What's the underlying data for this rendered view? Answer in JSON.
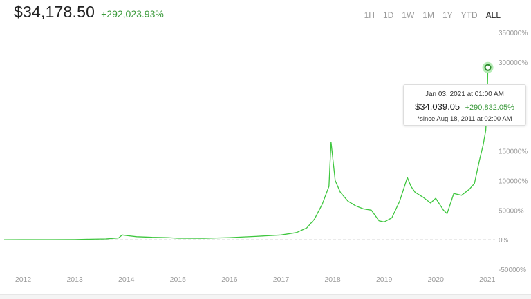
{
  "header": {
    "price": "$34,178.50",
    "change": "+292,023.93%"
  },
  "ranges": [
    "1H",
    "1D",
    "1W",
    "1M",
    "1Y",
    "YTD",
    "ALL"
  ],
  "active_range": "ALL",
  "tooltip": {
    "date": "Jan 03, 2021 at 01:00 AM",
    "price": "$34,039.05",
    "change": "+290,832.05%",
    "since": "*since Aug 18, 2011 at 02:00 AM"
  },
  "colors": {
    "line": "#3ec63e",
    "positive": "#3b9a3b",
    "zero_line": "#c8c8c8",
    "axis_text": "#9a9a9a"
  },
  "chart_data": {
    "type": "line",
    "y_unit": "%",
    "ylim": [
      -50000,
      350000
    ],
    "yticks": [
      -50000,
      0,
      50000,
      100000,
      150000,
      300000,
      350000
    ],
    "ytick_labels": [
      "-50000%",
      "0%",
      "50000%",
      "100000%",
      "150000%",
      "300000%",
      "350000%"
    ],
    "xticks": [
      2012,
      2013,
      2014,
      2015,
      2016,
      2017,
      2018,
      2019,
      2020,
      2021
    ],
    "xtick_labels": [
      "2012",
      "2013",
      "2014",
      "2015",
      "2016",
      "2017",
      "2018",
      "2019",
      "2020",
      "2021"
    ],
    "xlim": [
      2011.55,
      2021.15
    ],
    "grid": false,
    "series": [
      {
        "x": [
          2011.63,
          2012.0,
          2012.5,
          2013.0,
          2013.3,
          2013.6,
          2013.85,
          2013.92,
          2014.0,
          2014.2,
          2014.5,
          2014.8,
          2015.0,
          2015.5,
          2016.0,
          2016.5,
          2017.0,
          2017.3,
          2017.5,
          2017.65,
          2017.8,
          2017.93,
          2017.97,
          2018.05,
          2018.15,
          2018.3,
          2018.45,
          2018.6,
          2018.75,
          2018.9,
          2019.0,
          2019.15,
          2019.3,
          2019.45,
          2019.52,
          2019.6,
          2019.75,
          2019.9,
          2020.0,
          2020.15,
          2020.22,
          2020.35,
          2020.5,
          2020.65,
          2020.75,
          2020.85,
          2020.92,
          2020.97,
          2021.0,
          2021.01
        ],
        "y": [
          0,
          100,
          200,
          300,
          900,
          1300,
          3000,
          8000,
          7000,
          5000,
          4000,
          3500,
          2500,
          2400,
          3500,
          5500,
          8000,
          12000,
          20000,
          35000,
          60000,
          90000,
          165000,
          100000,
          80000,
          65000,
          57000,
          52000,
          50000,
          32000,
          30000,
          37000,
          65000,
          105000,
          90000,
          80000,
          72000,
          62000,
          70000,
          50000,
          44000,
          78000,
          75000,
          85000,
          95000,
          135000,
          160000,
          185000,
          240000,
          290832
        ]
      }
    ],
    "highlight": {
      "x": 2021.01,
      "y": 290832
    }
  }
}
